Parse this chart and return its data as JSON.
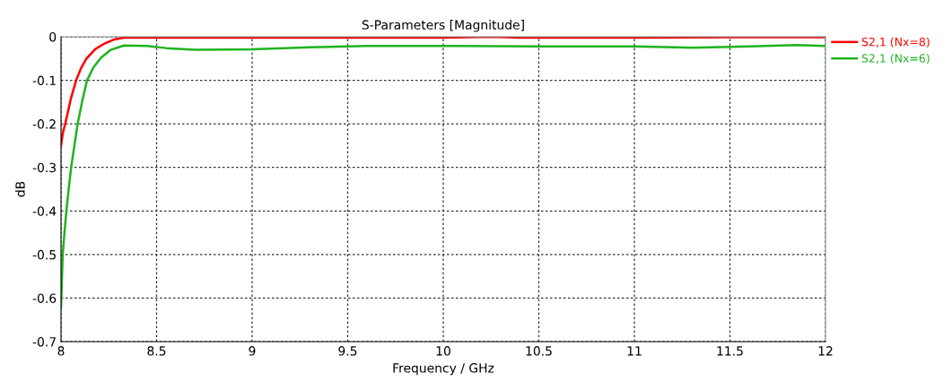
{
  "chart_data": {
    "type": "line",
    "title": "S-Parameters [Magnitude]",
    "xlabel": "Frequency / GHz",
    "ylabel": "dB",
    "xlim": [
      8,
      12
    ],
    "xticks": [
      8,
      8.5,
      9,
      9.5,
      10,
      10.5,
      11,
      11.5,
      12
    ],
    "ylim": [
      -0.7,
      0
    ],
    "yticks": [
      -0.7,
      -0.6,
      -0.5,
      -0.4,
      -0.3,
      -0.2,
      -0.1,
      0
    ],
    "grid": true,
    "legend": "right",
    "line_style": "solid",
    "marker": "none",
    "series": [
      {
        "name": "S2,1 (Nx=8)",
        "color": "#ff0000",
        "x": [
          8.0,
          8.01,
          8.022,
          8.05,
          8.079,
          8.105,
          8.133,
          8.18,
          8.23,
          8.28,
          8.33,
          8.4,
          9.0,
          9.5,
          10.0,
          10.25,
          10.4,
          11.0,
          11.5,
          12.0
        ],
        "values": [
          -0.25,
          -0.22,
          -0.2,
          -0.145,
          -0.1,
          -0.072,
          -0.05,
          -0.028,
          -0.015,
          -0.006,
          -0.002,
          -0.002,
          -0.002,
          -0.002,
          -0.002,
          0,
          -0.002,
          -0.002,
          -0.001,
          -0.001
        ]
      },
      {
        "name": "S2,1 (Nx=6)",
        "color": "#1eb41e",
        "x": [
          8.0,
          8.004,
          8.009,
          8.018,
          8.028,
          8.04,
          8.053,
          8.07,
          8.087,
          8.11,
          8.136,
          8.17,
          8.21,
          8.26,
          8.33,
          8.45,
          8.55,
          8.7,
          9.0,
          9.3,
          9.6,
          10.0,
          10.5,
          11.0,
          11.3,
          11.6,
          11.85,
          12.0
        ],
        "values": [
          -0.62,
          -0.57,
          -0.5,
          -0.45,
          -0.4,
          -0.35,
          -0.3,
          -0.25,
          -0.2,
          -0.15,
          -0.1,
          -0.07,
          -0.048,
          -0.03,
          -0.02,
          -0.021,
          -0.026,
          -0.03,
          -0.029,
          -0.024,
          -0.021,
          -0.021,
          -0.022,
          -0.022,
          -0.025,
          -0.022,
          -0.019,
          -0.021
        ]
      }
    ]
  }
}
